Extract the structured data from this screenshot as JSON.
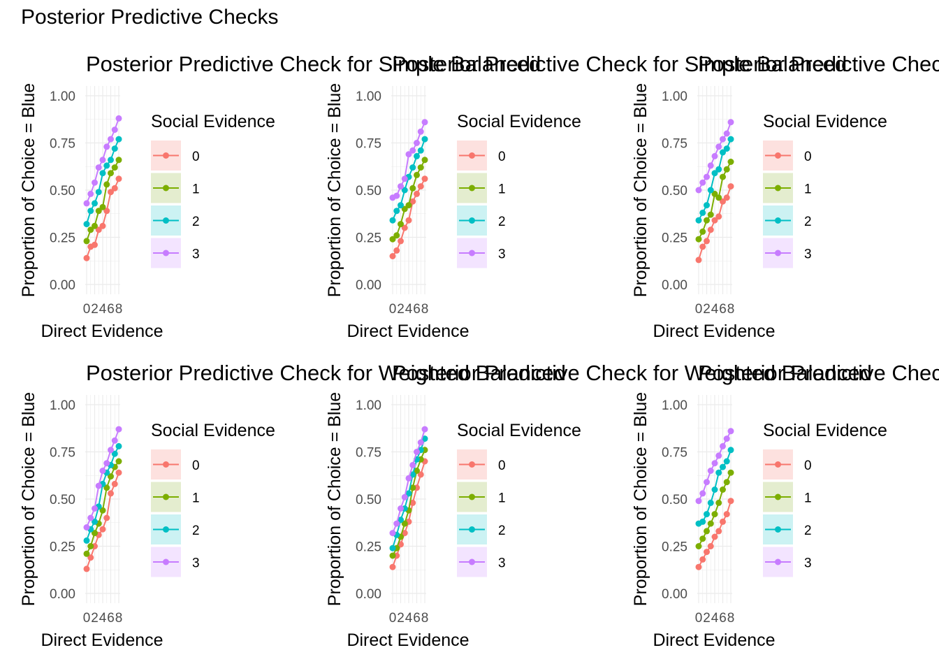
{
  "title": "Posterior Predictive Checks",
  "colors": {
    "series": [
      "#F8766D",
      "#7CAE00",
      "#00BFC4",
      "#C77CFF"
    ],
    "key_bg": [
      "#FDE1DF",
      "#E4EDCF",
      "#CCF2F3",
      "#F3E4FF"
    ],
    "grid": "#EBEBEB",
    "text": "#4D4D4D"
  },
  "chart_data": [
    {
      "type": "line",
      "title": "Posterior Predictive Check for Simple Balanced",
      "xlabel": "Direct Evidence",
      "ylabel": "Proportion of Choice = Blue",
      "ylim": [
        0,
        1
      ],
      "xlim": [
        0,
        8
      ],
      "x_ticks": [
        "0",
        "2",
        "4",
        "6",
        "8"
      ],
      "y_ticks": [
        "0.00",
        "0.25",
        "0.50",
        "0.75",
        "1.00"
      ],
      "legend_title": "Social Evidence",
      "legend_placement": "right",
      "x": [
        0,
        1,
        2,
        3,
        4,
        5,
        6,
        7,
        8
      ],
      "series": [
        {
          "name": "0",
          "values": [
            0.14,
            0.2,
            0.21,
            0.29,
            0.31,
            0.39,
            0.49,
            0.51,
            0.56
          ]
        },
        {
          "name": "1",
          "values": [
            0.23,
            0.29,
            0.31,
            0.39,
            0.41,
            0.53,
            0.59,
            0.62,
            0.66
          ]
        },
        {
          "name": "2",
          "values": [
            0.32,
            0.39,
            0.43,
            0.49,
            0.59,
            0.63,
            0.66,
            0.72,
            0.77
          ]
        },
        {
          "name": "3",
          "values": [
            0.43,
            0.48,
            0.54,
            0.62,
            0.66,
            0.73,
            0.77,
            0.82,
            0.88
          ]
        }
      ]
    },
    {
      "type": "line",
      "title": "Posterior Predictive Check for Simple Balanced",
      "xlabel": "Direct Evidence",
      "ylabel": "Proportion of Choice = Blue",
      "ylim": [
        0,
        1
      ],
      "xlim": [
        0,
        8
      ],
      "x_ticks": [
        "0",
        "2",
        "4",
        "6",
        "8"
      ],
      "y_ticks": [
        "0.00",
        "0.25",
        "0.50",
        "0.75",
        "1.00"
      ],
      "legend_title": "Social Evidence",
      "legend_placement": "right",
      "x": [
        0,
        1,
        2,
        3,
        4,
        5,
        6,
        7,
        8
      ],
      "series": [
        {
          "name": "0",
          "values": [
            0.15,
            0.18,
            0.23,
            0.3,
            0.34,
            0.44,
            0.48,
            0.52,
            0.56
          ]
        },
        {
          "name": "1",
          "values": [
            0.24,
            0.26,
            0.32,
            0.4,
            0.42,
            0.51,
            0.58,
            0.62,
            0.66
          ]
        },
        {
          "name": "2",
          "values": [
            0.34,
            0.39,
            0.42,
            0.5,
            0.57,
            0.62,
            0.68,
            0.71,
            0.77
          ]
        },
        {
          "name": "3",
          "values": [
            0.46,
            0.47,
            0.52,
            0.56,
            0.69,
            0.71,
            0.75,
            0.81,
            0.86
          ]
        }
      ]
    },
    {
      "type": "line",
      "title": "Posterior Predictive Check for Simple Self Focused",
      "xlabel": "Direct Evidence",
      "ylabel": "Proportion of Choice = Blue",
      "ylim": [
        0,
        1
      ],
      "xlim": [
        0,
        8
      ],
      "x_ticks": [
        "0",
        "2",
        "4",
        "6",
        "8"
      ],
      "y_ticks": [
        "0.00",
        "0.25",
        "0.50",
        "0.75",
        "1.00"
      ],
      "legend_title": "Social Evidence",
      "legend_placement": "right",
      "x": [
        0,
        1,
        2,
        3,
        4,
        5,
        6,
        7,
        8
      ],
      "series": [
        {
          "name": "0",
          "values": [
            0.13,
            0.2,
            0.23,
            0.29,
            0.34,
            0.36,
            0.44,
            0.46,
            0.52
          ]
        },
        {
          "name": "1",
          "values": [
            0.24,
            0.28,
            0.34,
            0.37,
            0.48,
            0.46,
            0.57,
            0.61,
            0.65
          ]
        },
        {
          "name": "2",
          "values": [
            0.34,
            0.38,
            0.42,
            0.5,
            0.59,
            0.61,
            0.7,
            0.72,
            0.77
          ]
        },
        {
          "name": "3",
          "values": [
            0.5,
            0.54,
            0.57,
            0.63,
            0.68,
            0.73,
            0.77,
            0.8,
            0.86
          ]
        }
      ]
    },
    {
      "type": "line",
      "title": "Posterior Predictive Check for Weighted Balanced",
      "xlabel": "Direct Evidence",
      "ylabel": "Proportion of Choice = Blue",
      "ylim": [
        0,
        1
      ],
      "xlim": [
        0,
        8
      ],
      "x_ticks": [
        "0",
        "2",
        "4",
        "6",
        "8"
      ],
      "y_ticks": [
        "0.00",
        "0.25",
        "0.50",
        "0.75",
        "1.00"
      ],
      "legend_title": "Social Evidence",
      "legend_placement": "right",
      "x": [
        0,
        1,
        2,
        3,
        4,
        5,
        6,
        7,
        8
      ],
      "series": [
        {
          "name": "0",
          "values": [
            0.13,
            0.19,
            0.25,
            0.31,
            0.34,
            0.4,
            0.53,
            0.58,
            0.64
          ]
        },
        {
          "name": "1",
          "values": [
            0.21,
            0.25,
            0.32,
            0.37,
            0.44,
            0.56,
            0.62,
            0.67,
            0.7
          ]
        },
        {
          "name": "2",
          "values": [
            0.28,
            0.34,
            0.38,
            0.46,
            0.58,
            0.64,
            0.68,
            0.74,
            0.78
          ]
        },
        {
          "name": "3",
          "values": [
            0.35,
            0.4,
            0.45,
            0.57,
            0.65,
            0.69,
            0.76,
            0.81,
            0.87
          ]
        }
      ]
    },
    {
      "type": "line",
      "title": "Posterior Predictive Check for Weighted Balanced",
      "xlabel": "Direct Evidence",
      "ylabel": "Proportion of Choice = Blue",
      "ylim": [
        0,
        1
      ],
      "xlim": [
        0,
        8
      ],
      "x_ticks": [
        "0",
        "2",
        "4",
        "6",
        "8"
      ],
      "y_ticks": [
        "0.00",
        "0.25",
        "0.50",
        "0.75",
        "1.00"
      ],
      "legend_title": "Social Evidence",
      "legend_placement": "right",
      "x": [
        0,
        1,
        2,
        3,
        4,
        5,
        6,
        7,
        8
      ],
      "series": [
        {
          "name": "0",
          "values": [
            0.14,
            0.2,
            0.26,
            0.32,
            0.38,
            0.48,
            0.56,
            0.63,
            0.7
          ]
        },
        {
          "name": "1",
          "values": [
            0.2,
            0.24,
            0.3,
            0.37,
            0.44,
            0.56,
            0.65,
            0.71,
            0.76
          ]
        },
        {
          "name": "2",
          "values": [
            0.24,
            0.31,
            0.39,
            0.45,
            0.53,
            0.63,
            0.71,
            0.76,
            0.82
          ]
        },
        {
          "name": "3",
          "values": [
            0.32,
            0.37,
            0.45,
            0.51,
            0.61,
            0.68,
            0.75,
            0.8,
            0.87
          ]
        }
      ]
    },
    {
      "type": "line",
      "title": "Posterior Predictive Check for Weighted Self Focused",
      "xlabel": "Direct Evidence",
      "ylabel": "Proportion of Choice = Blue",
      "ylim": [
        0,
        1
      ],
      "xlim": [
        0,
        8
      ],
      "x_ticks": [
        "0",
        "2",
        "4",
        "6",
        "8"
      ],
      "y_ticks": [
        "0.00",
        "0.25",
        "0.50",
        "0.75",
        "1.00"
      ],
      "legend_title": "Social Evidence",
      "legend_placement": "right",
      "x": [
        0,
        1,
        2,
        3,
        4,
        5,
        6,
        7,
        8
      ],
      "series": [
        {
          "name": "0",
          "values": [
            0.14,
            0.18,
            0.22,
            0.25,
            0.3,
            0.33,
            0.38,
            0.42,
            0.49
          ]
        },
        {
          "name": "1",
          "values": [
            0.25,
            0.29,
            0.33,
            0.37,
            0.42,
            0.48,
            0.55,
            0.59,
            0.64
          ]
        },
        {
          "name": "2",
          "values": [
            0.37,
            0.38,
            0.42,
            0.48,
            0.55,
            0.64,
            0.67,
            0.7,
            0.76
          ]
        },
        {
          "name": "3",
          "values": [
            0.49,
            0.53,
            0.59,
            0.65,
            0.69,
            0.73,
            0.78,
            0.82,
            0.86
          ]
        }
      ]
    }
  ]
}
